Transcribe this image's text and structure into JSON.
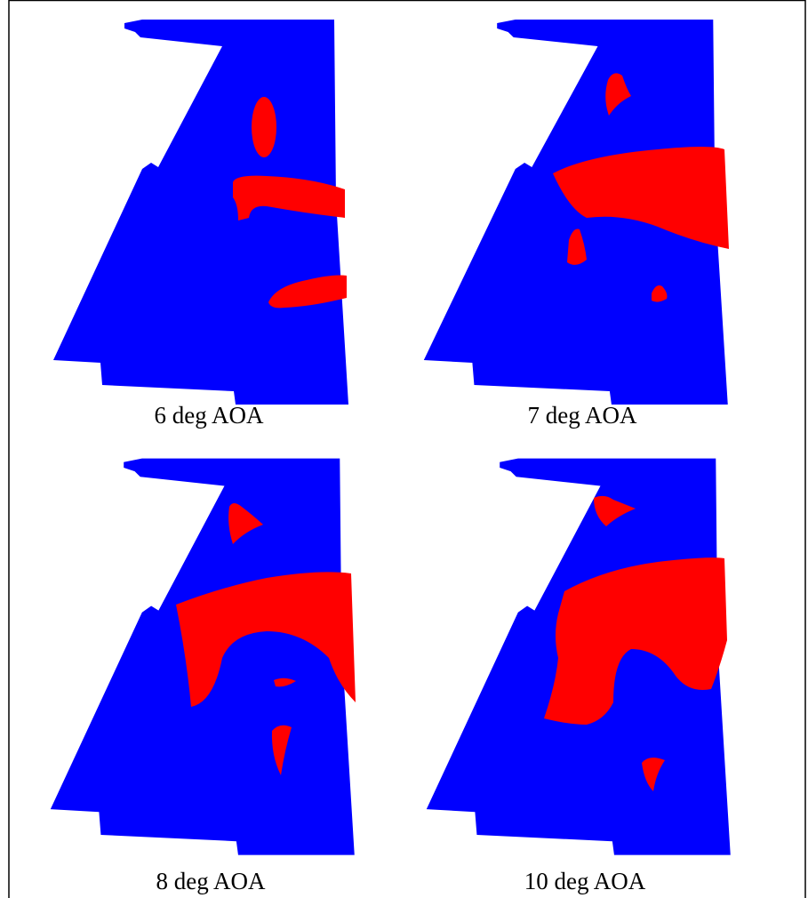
{
  "captions": [
    "6 deg AOA",
    "7 deg AOA",
    "8 deg AOA",
    "10 deg AOA"
  ]
}
